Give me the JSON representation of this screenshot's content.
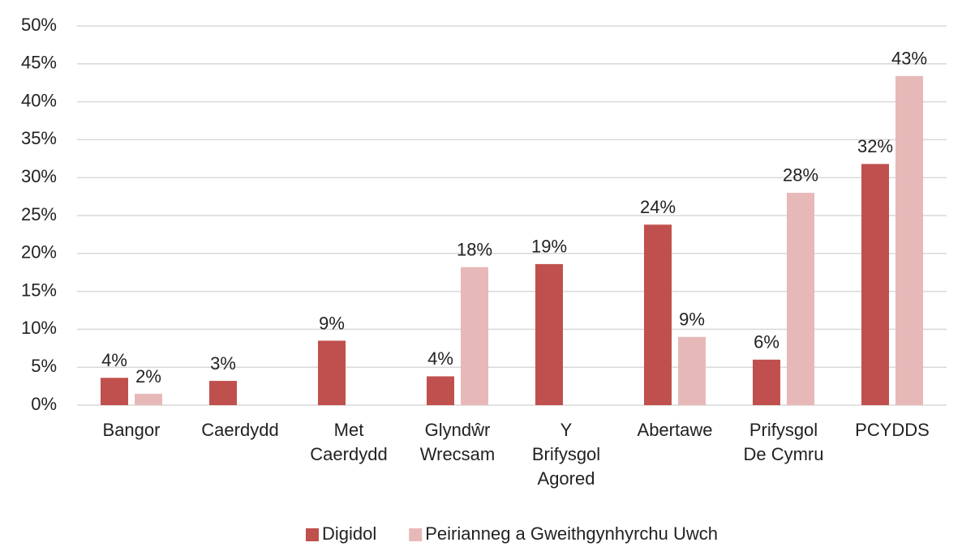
{
  "chart_data": {
    "type": "bar",
    "categories": [
      "Bangor",
      "Caerdydd",
      "Met\nCaerdydd",
      "Glyndŵr\nWrecsam",
      "Y\nBrifysgol\nAgored",
      "Abertawe",
      "Prifysgol\nDe Cymru",
      "PCYDDS"
    ],
    "series": [
      {
        "name": "Digidol",
        "color": "#c0504d",
        "values": [
          3.6,
          3.2,
          8.5,
          3.8,
          18.6,
          23.8,
          6.0,
          31.8
        ],
        "value_labels": [
          "4%",
          "3%",
          "9%",
          "4%",
          "19%",
          "24%",
          "6%",
          "32%"
        ]
      },
      {
        "name": "Peirianneg a Gweithgynhyrchu Uwch",
        "color": "#e6b9b8",
        "values": [
          1.5,
          null,
          null,
          18.2,
          null,
          9.0,
          28.0,
          43.4
        ],
        "value_labels": [
          "2%",
          null,
          null,
          "18%",
          null,
          "9%",
          "28%",
          "43%"
        ]
      }
    ],
    "ylim": [
      0,
      50
    ],
    "yticks": [
      {
        "value": 0,
        "label": "0%"
      },
      {
        "value": 5,
        "label": "5%"
      },
      {
        "value": 10,
        "label": "10%"
      },
      {
        "value": 15,
        "label": "15%"
      },
      {
        "value": 20,
        "label": "20%"
      },
      {
        "value": 25,
        "label": "25%"
      },
      {
        "value": 30,
        "label": "30%"
      },
      {
        "value": 35,
        "label": "35%"
      },
      {
        "value": 40,
        "label": "40%"
      },
      {
        "value": 45,
        "label": "45%"
      },
      {
        "value": 50,
        "label": "50%"
      }
    ],
    "grid": true,
    "legend": "bottom"
  }
}
